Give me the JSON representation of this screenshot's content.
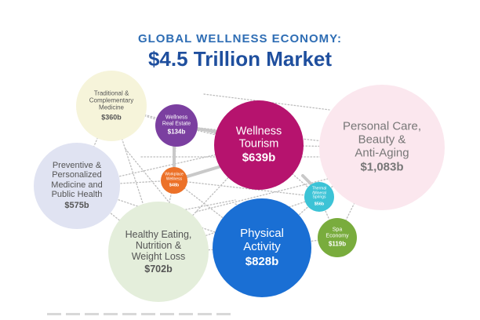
{
  "header": {
    "title_top": "GLOBAL WELLNESS ECONOMY:",
    "title_main": "$4.5 Trillion Market"
  },
  "colors": {
    "title_top": "#2e6db4",
    "title_main": "#1f4f9e",
    "connector": "#bdbdbd",
    "connector_strong": "#c9c9c9"
  },
  "chart_data": {
    "type": "bubble",
    "title": "GLOBAL WELLNESS ECONOMY: $4.5 Trillion Market",
    "unit": "US$ billions",
    "series": [
      {
        "name": "Personal Care, Beauty & Anti-Aging",
        "value_label": "$1,083b",
        "value": 1083,
        "fill": "#fbe7ee",
        "text": "#777777"
      },
      {
        "name": "Physical Activity",
        "value_label": "$828b",
        "value": 828,
        "fill": "#1a6fd4",
        "text": "#ffffff"
      },
      {
        "name": "Healthy Eating, Nutrition & Weight Loss",
        "value_label": "$702b",
        "value": 702,
        "fill": "#e4eedb",
        "text": "#555555"
      },
      {
        "name": "Wellness Tourism",
        "value_label": "$639b",
        "value": 639,
        "fill": "#b6136e",
        "text": "#ffffff"
      },
      {
        "name": "Preventive & Personalized Medicine and Public Health",
        "value_label": "$575b",
        "value": 575,
        "fill": "#e0e3f2",
        "text": "#555555"
      },
      {
        "name": "Traditional & Complementary Medicine",
        "value_label": "$360b",
        "value": 360,
        "fill": "#f6f4da",
        "text": "#555555"
      },
      {
        "name": "Wellness Real Estate",
        "value_label": "$134b",
        "value": 134,
        "fill": "#7b3fa0",
        "text": "#ffffff"
      },
      {
        "name": "Spa Economy",
        "value_label": "$119b",
        "value": 119,
        "fill": "#79ac3d",
        "text": "#ffffff"
      },
      {
        "name": "Thermal/Mineral Springs",
        "value_label": "$56b",
        "value": 56,
        "fill": "#3cc3d6",
        "text": "#ffffff"
      },
      {
        "name": "Workplace Wellness",
        "value_label": "$48b",
        "value": 48,
        "fill": "#ec7128",
        "text": "#ffffff"
      }
    ]
  }
}
